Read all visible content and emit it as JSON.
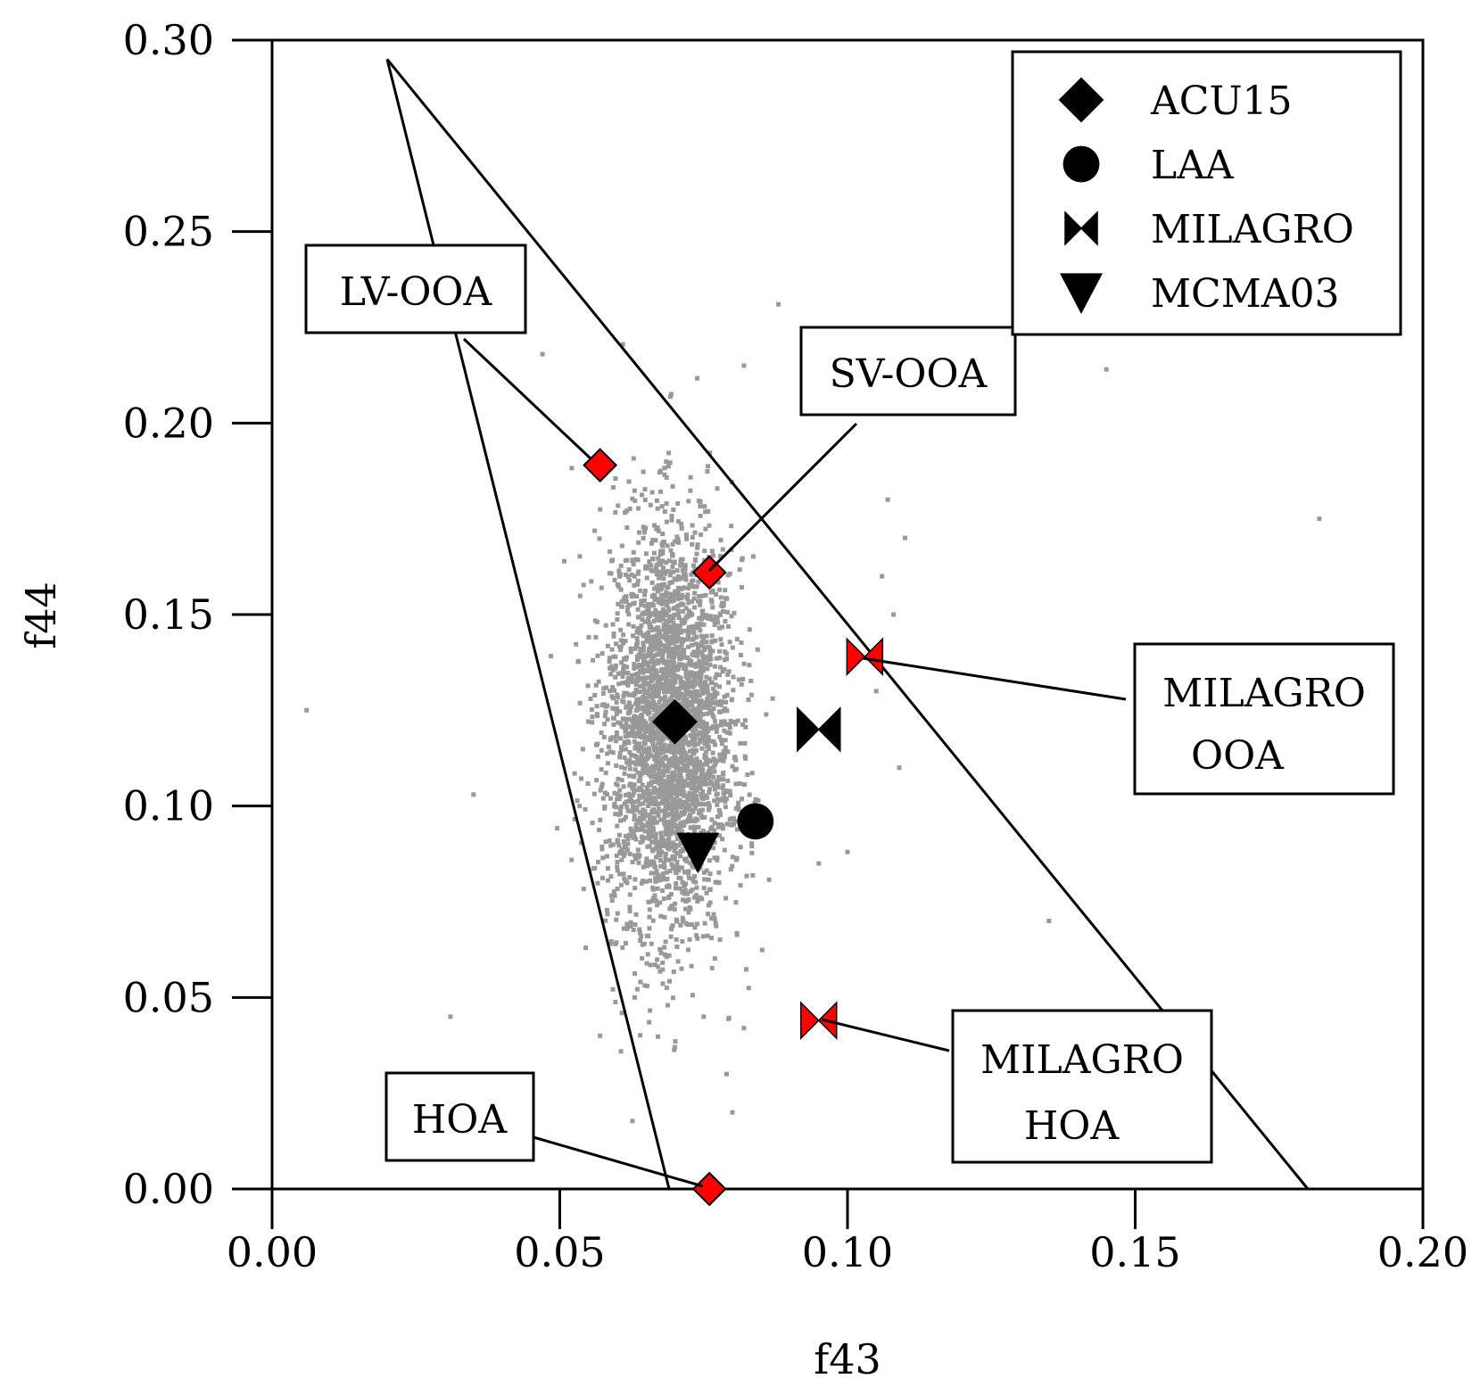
{
  "chart_data": {
    "type": "scatter",
    "title": "",
    "xlabel": "f43",
    "ylabel": "f44",
    "xlim": [
      0.0,
      0.2
    ],
    "ylim": [
      0.0,
      0.3
    ],
    "x_ticks": [
      "0.00",
      "0.05",
      "0.10",
      "0.15",
      "0.20"
    ],
    "y_ticks": [
      "0.00",
      "0.05",
      "0.10",
      "0.15",
      "0.20",
      "0.25",
      "0.30"
    ],
    "x_tick_values": [
      0.0,
      0.05,
      0.1,
      0.15,
      0.2
    ],
    "y_tick_values": [
      0.0,
      0.05,
      0.1,
      0.15,
      0.2,
      0.25,
      0.3
    ],
    "triangle": [
      [
        0.02,
        0.295
      ],
      [
        0.069,
        0.0
      ],
      [
        0.18,
        0.0
      ]
    ],
    "background_cloud": {
      "color": "#999999",
      "center": [
        0.069,
        0.12
      ],
      "description": "dense grey scatter of individual spectra",
      "outliers": [
        [
          0.006,
          0.125
        ],
        [
          0.031,
          0.045
        ],
        [
          0.035,
          0.103
        ],
        [
          0.047,
          0.218
        ],
        [
          0.088,
          0.231
        ],
        [
          0.082,
          0.215
        ],
        [
          0.145,
          0.214
        ],
        [
          0.182,
          0.175
        ],
        [
          0.107,
          0.18
        ],
        [
          0.11,
          0.17
        ],
        [
          0.106,
          0.16
        ],
        [
          0.108,
          0.15
        ],
        [
          0.105,
          0.13
        ],
        [
          0.109,
          0.11
        ],
        [
          0.1,
          0.088
        ],
        [
          0.095,
          0.085
        ],
        [
          0.135,
          0.07
        ],
        [
          0.082,
          0.042
        ],
        [
          0.079,
          0.03
        ],
        [
          0.08,
          0.02
        ],
        [
          0.07,
          0.037
        ],
        [
          0.057,
          0.04
        ],
        [
          0.063,
          0.05
        ],
        [
          0.075,
          0.045
        ]
      ]
    },
    "series": [
      {
        "name": "ACU15",
        "marker": "diamond",
        "color": "#000000",
        "x": [
          0.07
        ],
        "y": [
          0.122
        ]
      },
      {
        "name": "LAA",
        "marker": "circle",
        "color": "#000000",
        "x": [
          0.084
        ],
        "y": [
          0.096
        ]
      },
      {
        "name": "MILAGRO",
        "marker": "bowtie",
        "color": "#000000",
        "x": [
          0.095
        ],
        "y": [
          0.12
        ]
      },
      {
        "name": "MCMA03",
        "marker": "triangle-down",
        "color": "#000000",
        "x": [
          0.074
        ],
        "y": [
          0.088
        ]
      }
    ],
    "factors": [
      {
        "label": "LV-OOA",
        "marker": "diamond",
        "color": "#ff0000",
        "x": 0.057,
        "y": 0.189
      },
      {
        "label": "SV-OOA",
        "marker": "diamond",
        "color": "#ff0000",
        "x": 0.076,
        "y": 0.161
      },
      {
        "label": "HOA",
        "marker": "diamond",
        "color": "#ff0000",
        "x": 0.076,
        "y": 0.0
      },
      {
        "label": "MILAGRO OOA",
        "lines": [
          "MILAGRO",
          "OOA"
        ],
        "marker": "bowtie",
        "color": "#ff0000",
        "x": 0.103,
        "y": 0.139
      },
      {
        "label": "MILAGRO HOA",
        "lines": [
          "MILAGRO",
          "HOA"
        ],
        "marker": "bowtie",
        "color": "#ff0000",
        "x": 0.095,
        "y": 0.044
      }
    ],
    "legend": {
      "placement": "top-right",
      "entries": [
        {
          "label": "ACU15",
          "marker": "diamond"
        },
        {
          "label": "LAA",
          "marker": "circle"
        },
        {
          "label": "MILAGRO",
          "marker": "bowtie"
        },
        {
          "label": "MCMA03",
          "marker": "triangle-down"
        }
      ]
    },
    "colors": {
      "cloud": "#999999",
      "factor": "#ff0000",
      "series": "#000000"
    }
  }
}
